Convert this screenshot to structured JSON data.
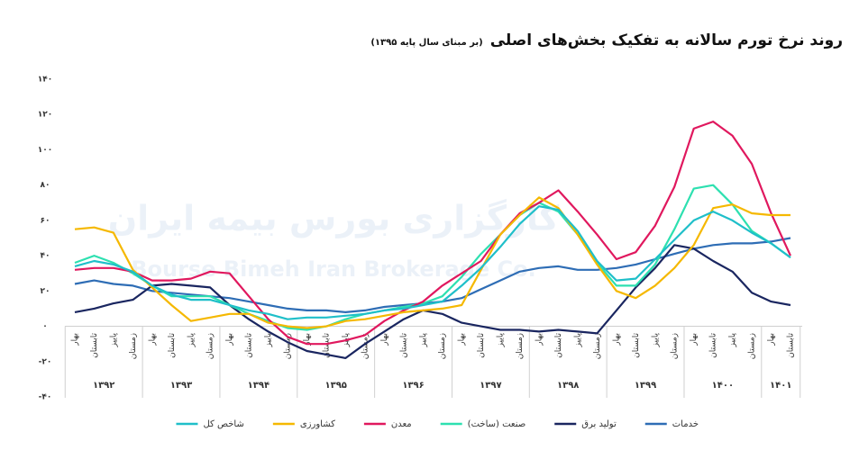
{
  "chart_data": {
    "type": "line",
    "title": "روند نرخ تورم سالانه به تفکیک بخش‌های اصلی",
    "subtitle": "(بر مبنای سال پایه ۱۳۹۵)",
    "watermark": [
      "کارگزاری بورس بیمه ایران",
      "Bourse Bimeh Iran Brokerage Co."
    ],
    "categories": [
      "بهار",
      "تابستان",
      "پاییز",
      "زمستان",
      "بهار",
      "تابستان",
      "پاییز",
      "زمستان",
      "بهار",
      "تابستان",
      "پاییز",
      "زمستان",
      "بهار",
      "تابستان",
      "پاییز",
      "زمستان",
      "بهار",
      "تابستان",
      "پاییز",
      "زمستان",
      "بهار",
      "تابستان",
      "پاییز",
      "زمستان",
      "بهار",
      "تابستان",
      "پاییز",
      "زمستان",
      "بهار",
      "تابستان",
      "پاییز",
      "زمستان",
      "بهار",
      "تابستان",
      "پاییز",
      "زمستان",
      "بهار",
      "تابستان"
    ],
    "years": [
      "۱۳۹۲",
      "۱۳۹۳",
      "۱۳۹۴",
      "۱۳۹۵",
      "۱۳۹۶",
      "۱۳۹۷",
      "۱۳۹۸",
      "۱۳۹۹",
      "۱۴۰۰",
      "۱۴۰۱"
    ],
    "ylim": [
      -40,
      140
    ],
    "yticks": [
      {
        "value": 140,
        "label": "۱۴۰"
      },
      {
        "value": 120,
        "label": "۱۲۰"
      },
      {
        "value": 100,
        "label": "۱۰۰"
      },
      {
        "value": 80,
        "label": "۸۰"
      },
      {
        "value": 60,
        "label": "۶۰"
      },
      {
        "value": 40,
        "label": "۴۰"
      },
      {
        "value": 20,
        "label": "۲۰"
      },
      {
        "value": 0,
        "label": "۰"
      },
      {
        "value": -20,
        "label": "-۲۰"
      },
      {
        "value": -40,
        "label": "-۴۰"
      }
    ],
    "grid": false,
    "series": [
      {
        "name": "خدمات",
        "color": "#2e6db5",
        "values": [
          24,
          26,
          24,
          23,
          20,
          19,
          18,
          17,
          16,
          14,
          12,
          10,
          9,
          9,
          8,
          9,
          11,
          12,
          13,
          14,
          16,
          21,
          26,
          31,
          33,
          34,
          32,
          32,
          33,
          35,
          38,
          41,
          44,
          46,
          47,
          47,
          48,
          50
        ]
      },
      {
        "name": "تولید برق",
        "color": "#1a2660",
        "values": [
          8,
          10,
          13,
          15,
          23,
          24,
          23,
          22,
          12,
          4,
          -3,
          -9,
          -14,
          -16,
          -18,
          -10,
          -3,
          4,
          9,
          7,
          2,
          0,
          -2,
          -2,
          -3,
          -2,
          -3,
          -4,
          9,
          22,
          33,
          46,
          44,
          37,
          31,
          19,
          14,
          12
        ]
      },
      {
        "name": "صنعت (ساخت)",
        "color": "#2de0b0",
        "values": [
          36,
          40,
          36,
          30,
          23,
          17,
          17,
          17,
          12,
          7,
          3,
          -1,
          -2,
          0,
          4,
          7,
          9,
          11,
          13,
          17,
          28,
          41,
          52,
          63,
          70,
          65,
          52,
          36,
          23,
          23,
          35,
          55,
          78,
          80,
          69,
          54,
          47,
          39
        ]
      },
      {
        "name": "معدن",
        "color": "#e0185e",
        "values": [
          32,
          33,
          33,
          31,
          26,
          26,
          27,
          31,
          30,
          17,
          4,
          -6,
          -10,
          -10,
          -8,
          -5,
          3,
          9,
          14,
          23,
          30,
          37,
          52,
          64,
          70,
          77,
          65,
          52,
          38,
          42,
          57,
          79,
          112,
          116,
          108,
          92,
          64,
          40
        ]
      },
      {
        "name": "کشاورزی",
        "color": "#f5b800",
        "values": [
          55,
          56,
          53,
          32,
          22,
          12,
          3,
          5,
          7,
          7,
          2,
          0,
          -1,
          0,
          3,
          4,
          6,
          8,
          9,
          10,
          12,
          32,
          52,
          63,
          73,
          67,
          52,
          35,
          20,
          16,
          23,
          33,
          46,
          67,
          69,
          64,
          63,
          63
        ]
      },
      {
        "name": "شاخص کل",
        "color": "#1fbfc9",
        "values": [
          34,
          37,
          35,
          31,
          23,
          18,
          15,
          15,
          12,
          9,
          7,
          4,
          5,
          5,
          6,
          7,
          9,
          10,
          12,
          14,
          23,
          33,
          45,
          58,
          68,
          66,
          54,
          37,
          26,
          27,
          38,
          49,
          60,
          65,
          60,
          53,
          47,
          39
        ]
      }
    ]
  }
}
